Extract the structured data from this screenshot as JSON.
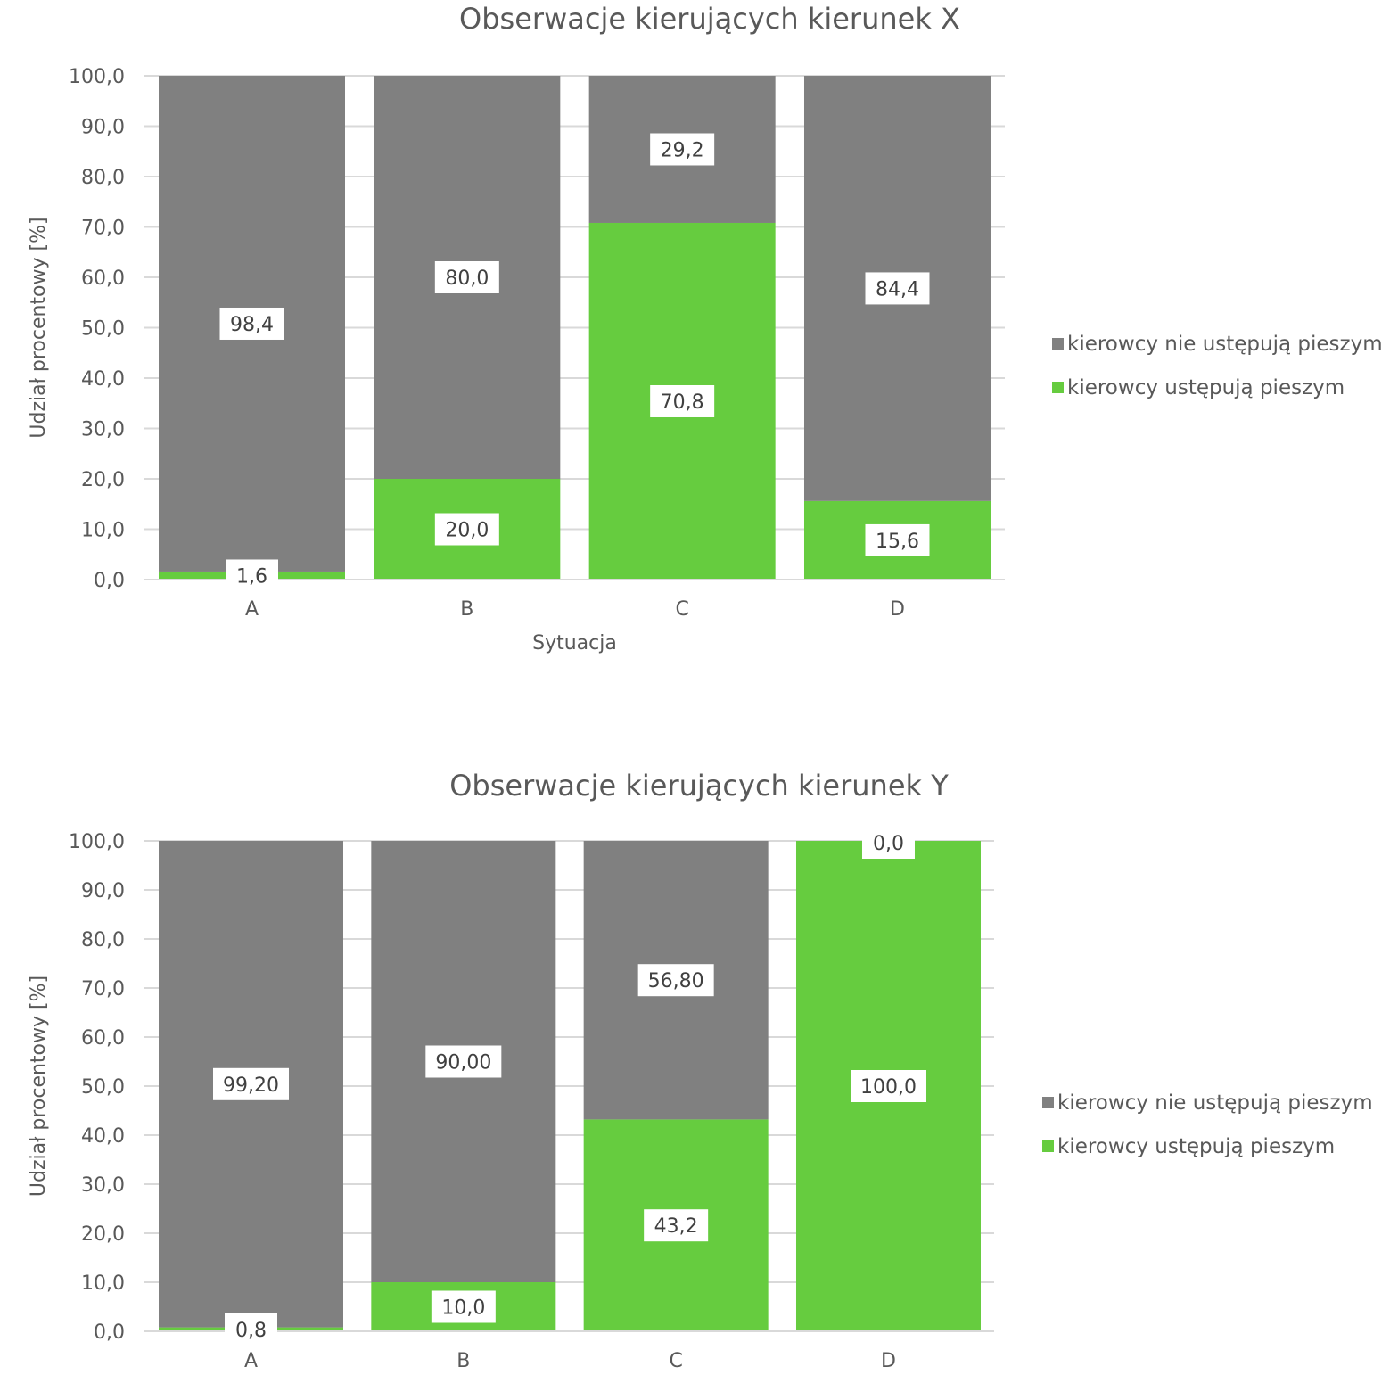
{
  "chart_data": [
    {
      "type": "bar",
      "stacked": true,
      "title": "Obserwacje kierujących kierunek X",
      "xlabel": "Sytuacja",
      "ylabel": "Udział procentowy [%]",
      "ylim": [
        0,
        100
      ],
      "yticks": [
        "0,0",
        "10,0",
        "20,0",
        "30,0",
        "40,0",
        "50,0",
        "60,0",
        "70,0",
        "80,0",
        "90,0",
        "100,0"
      ],
      "categories": [
        "A",
        "B",
        "C",
        "D"
      ],
      "grid": true,
      "legend_position": "right",
      "series": [
        {
          "name": "kierowcy ustępują pieszym",
          "color": "#66cc3f",
          "values": [
            1.6,
            20.0,
            70.8,
            15.6
          ],
          "labels": [
            "1,6",
            "20,0",
            "70,8",
            "15,6"
          ]
        },
        {
          "name": "kierowcy nie ustępują pieszym",
          "color": "#808080",
          "values": [
            98.4,
            80.0,
            29.2,
            84.4
          ],
          "labels": [
            "98,4",
            "80,0",
            "29,2",
            "84,4"
          ]
        }
      ]
    },
    {
      "type": "bar",
      "stacked": true,
      "title": "Obserwacje kierujących kierunek Y",
      "xlabel": "",
      "ylabel": "Udział procentowy [%]",
      "ylim": [
        0,
        100
      ],
      "yticks": [
        "0,0",
        "10,0",
        "20,0",
        "30,0",
        "40,0",
        "50,0",
        "60,0",
        "70,0",
        "80,0",
        "90,0",
        "100,0"
      ],
      "categories": [
        "A",
        "B",
        "C",
        "D"
      ],
      "grid": true,
      "legend_position": "right",
      "series": [
        {
          "name": "kierowcy ustępują pieszym",
          "color": "#66cc3f",
          "values": [
            0.8,
            10.0,
            43.2,
            100.0
          ],
          "labels": [
            "0,8",
            "10,0",
            "43,2",
            "100,0"
          ]
        },
        {
          "name": "kierowcy nie ustępują pieszym",
          "color": "#808080",
          "values": [
            99.2,
            90.0,
            56.8,
            0.0
          ],
          "labels": [
            "99,20",
            "90,00",
            "56,80",
            "0,0"
          ]
        }
      ]
    }
  ]
}
